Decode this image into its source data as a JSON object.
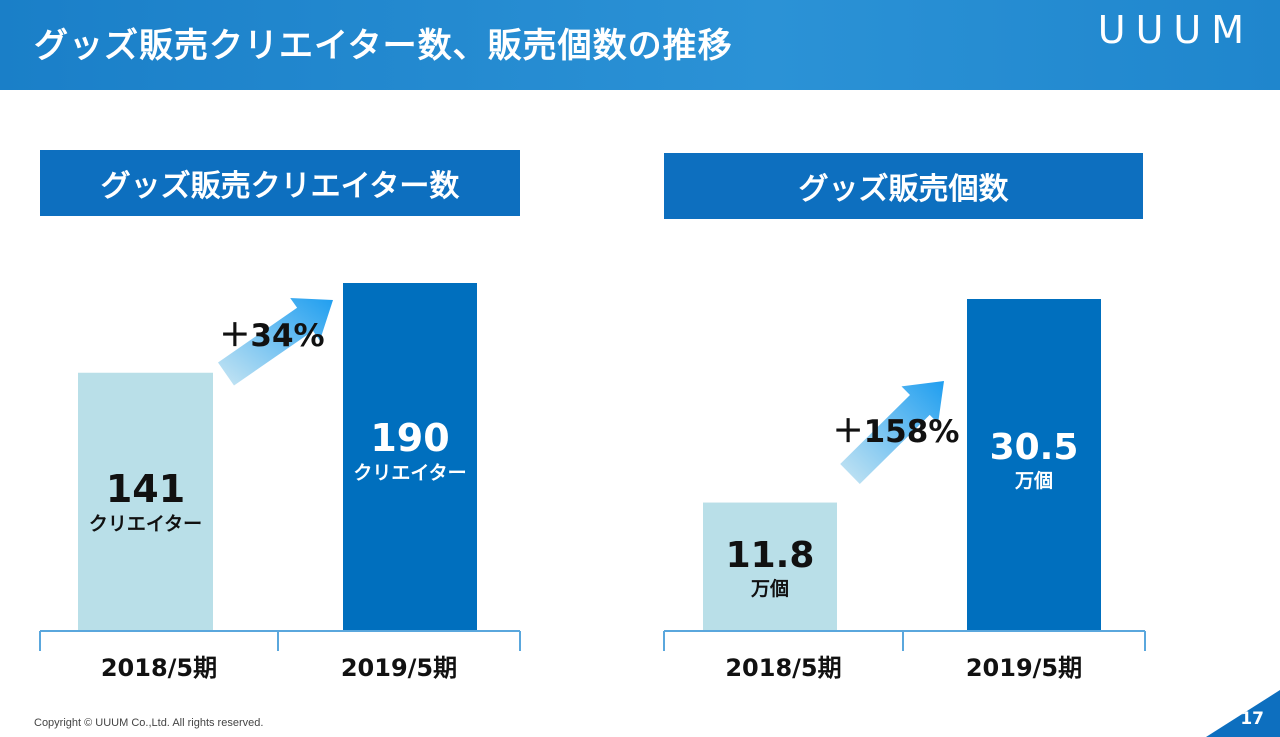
{
  "header": {
    "title": "グッズ販売クリエイター数、販売個数の推移",
    "logo": "UUUM"
  },
  "footer": {
    "copyright": "Copyright © UUUM Co.,Ltd. All rights reserved.",
    "page_number": "17"
  },
  "colors": {
    "header_blue": "#1a7fc8",
    "title_box": "#0d6fbf",
    "bar_light": "#b9dfe8",
    "bar_dark": "#006fbe"
  },
  "chart_data": [
    {
      "type": "bar",
      "title": "グッズ販売クリエイター数",
      "categories": [
        "2018/5期",
        "2019/5期"
      ],
      "values": [
        141,
        190
      ],
      "value_labels": [
        "141",
        "190"
      ],
      "unit_label": "クリエイター",
      "growth_label": "＋34%",
      "ylim": [
        0,
        200
      ]
    },
    {
      "type": "bar",
      "title": "グッズ販売個数",
      "categories": [
        "2018/5期",
        "2019/5期"
      ],
      "values": [
        11.8,
        30.5
      ],
      "value_labels": [
        "11.8",
        "30.5"
      ],
      "unit_label": "万個",
      "growth_label": "＋158%",
      "ylim": [
        0,
        33
      ]
    }
  ]
}
